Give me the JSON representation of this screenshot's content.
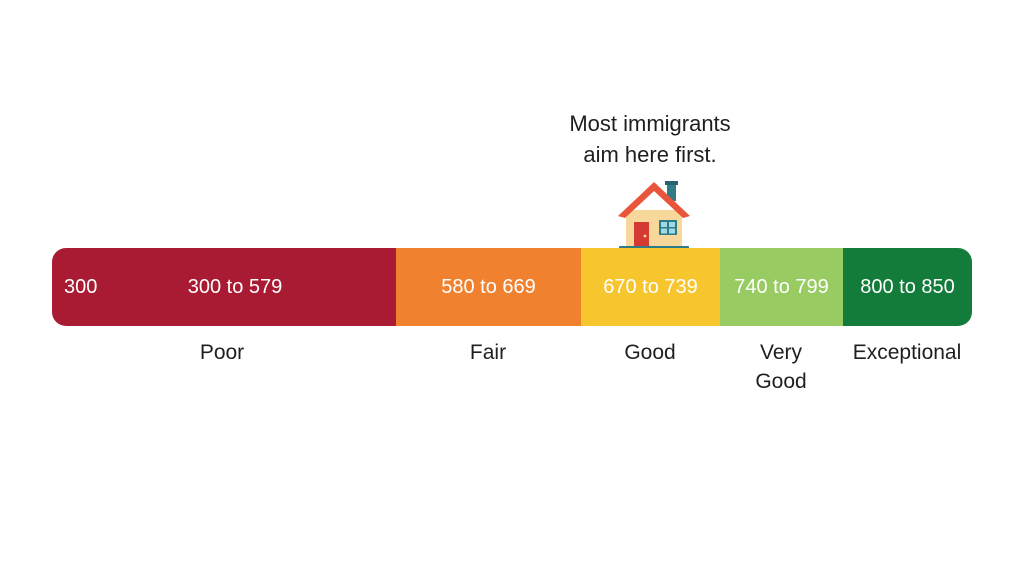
{
  "annotation": {
    "line1": "Most immigrants",
    "line2": "aim here first.",
    "icon": "house-icon"
  },
  "scale": {
    "start_label": "300",
    "segments": [
      {
        "id": "poor",
        "range": "300 to 579",
        "label_lines": [
          "Poor"
        ],
        "color": "#A81B33",
        "min": 300,
        "max": 579
      },
      {
        "id": "fair",
        "range": "580 to 669",
        "label_lines": [
          "Fair"
        ],
        "color": "#F0812E",
        "min": 580,
        "max": 669
      },
      {
        "id": "good",
        "range": "670 to 739",
        "label_lines": [
          "Good"
        ],
        "color": "#F7C52E",
        "min": 670,
        "max": 739
      },
      {
        "id": "very-good",
        "range": "740 to 799",
        "label_lines": [
          "Very",
          "Good"
        ],
        "color": "#98CC62",
        "min": 740,
        "max": 799
      },
      {
        "id": "exceptional",
        "range": "800 to 850",
        "label_lines": [
          "Exceptional"
        ],
        "color": "#137C3A",
        "min": 800,
        "max": 850
      }
    ]
  }
}
